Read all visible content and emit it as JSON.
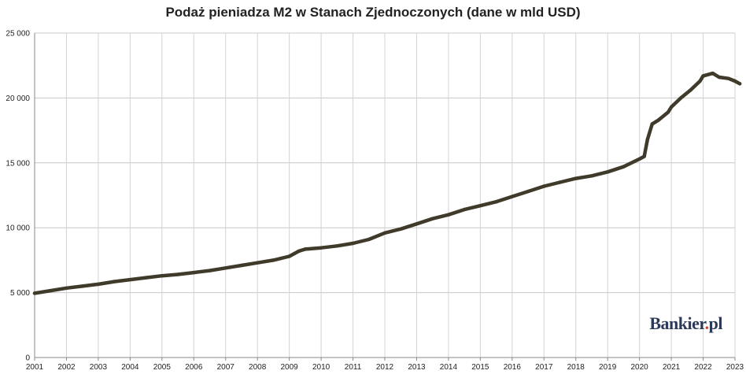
{
  "chart_data": {
    "type": "line",
    "title": "Podaż pieniadza M2 w Stanach Zjednoczonych (dane w mld USD)",
    "xlabel": "",
    "ylabel": "",
    "x_tick_labels": [
      "2001",
      "2002",
      "2003",
      "2004",
      "2005",
      "2006",
      "2007",
      "2008",
      "2009",
      "2010",
      "2011",
      "2012",
      "2013",
      "2014",
      "2015",
      "2016",
      "2017",
      "2018",
      "2019",
      "2020",
      "2021",
      "2022",
      "2023"
    ],
    "y_tick_labels": [
      "0",
      "5 000",
      "10 000",
      "15 000",
      "20 000",
      "25 000"
    ],
    "y_ticks": [
      0,
      5000,
      10000,
      15000,
      20000,
      25000
    ],
    "ylim": [
      0,
      25000
    ],
    "xlim": [
      2001,
      2023
    ],
    "grid": "vertical and horizontal",
    "legend": "none",
    "series": [
      {
        "color": "#3f3a2a",
        "points": [
          [
            2001.0,
            4950
          ],
          [
            2001.5,
            5150
          ],
          [
            2002.0,
            5350
          ],
          [
            2002.5,
            5500
          ],
          [
            2003.0,
            5650
          ],
          [
            2003.5,
            5850
          ],
          [
            2004.0,
            6000
          ],
          [
            2004.5,
            6150
          ],
          [
            2005.0,
            6300
          ],
          [
            2005.5,
            6400
          ],
          [
            2006.0,
            6550
          ],
          [
            2006.5,
            6700
          ],
          [
            2007.0,
            6900
          ],
          [
            2007.5,
            7100
          ],
          [
            2008.0,
            7300
          ],
          [
            2008.5,
            7500
          ],
          [
            2009.0,
            7800
          ],
          [
            2009.3,
            8200
          ],
          [
            2009.5,
            8350
          ],
          [
            2010.0,
            8450
          ],
          [
            2010.5,
            8600
          ],
          [
            2011.0,
            8800
          ],
          [
            2011.5,
            9100
          ],
          [
            2012.0,
            9600
          ],
          [
            2012.5,
            9900
          ],
          [
            2013.0,
            10300
          ],
          [
            2013.5,
            10700
          ],
          [
            2014.0,
            11000
          ],
          [
            2014.5,
            11400
          ],
          [
            2015.0,
            11700
          ],
          [
            2015.5,
            12000
          ],
          [
            2016.0,
            12400
          ],
          [
            2016.5,
            12800
          ],
          [
            2017.0,
            13200
          ],
          [
            2017.5,
            13500
          ],
          [
            2018.0,
            13800
          ],
          [
            2018.5,
            14000
          ],
          [
            2019.0,
            14300
          ],
          [
            2019.5,
            14700
          ],
          [
            2020.0,
            15300
          ],
          [
            2020.15,
            15500
          ],
          [
            2020.25,
            16800
          ],
          [
            2020.4,
            18000
          ],
          [
            2020.6,
            18300
          ],
          [
            2020.9,
            18900
          ],
          [
            2021.0,
            19300
          ],
          [
            2021.3,
            20000
          ],
          [
            2021.6,
            20600
          ],
          [
            2021.9,
            21300
          ],
          [
            2022.0,
            21700
          ],
          [
            2022.3,
            21900
          ],
          [
            2022.5,
            21600
          ],
          [
            2022.8,
            21500
          ],
          [
            2023.0,
            21300
          ],
          [
            2023.15,
            21100
          ]
        ]
      }
    ],
    "source_label": "Bankier",
    "source_dot": ".",
    "source_suffix": "pl"
  }
}
